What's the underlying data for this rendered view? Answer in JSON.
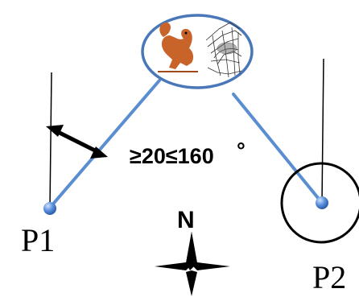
{
  "angle_constraint": "≥20≤160",
  "degree_symbol": "°",
  "points": [
    {
      "label": "P1"
    },
    {
      "label": "P2"
    }
  ],
  "compass": {
    "label": "N"
  },
  "colors": {
    "line": "#5b8ed1",
    "ellipse_stroke": "#4a77b8",
    "point_fill": "#4f86d4",
    "black": "#000000",
    "squirrel": "#c8632a"
  },
  "icons": [
    "squirrel-icon",
    "nest-icon"
  ]
}
